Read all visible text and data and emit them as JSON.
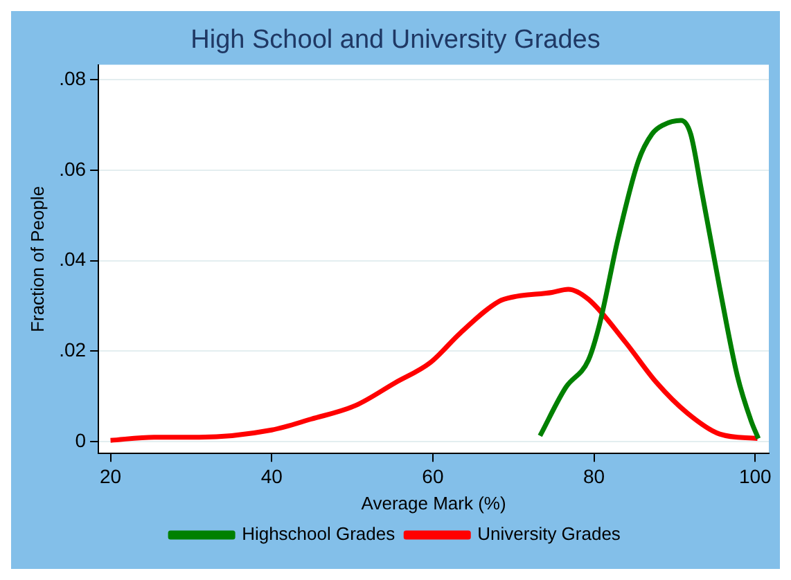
{
  "chart_data": {
    "type": "line",
    "title": "High School and University Grades",
    "xlabel": "Average Mark (%)",
    "ylabel": "Fraction of People",
    "series": [
      {
        "name": "Highschool Grades",
        "color": "#008000",
        "x": [
          73.3,
          76.5,
          79.3,
          80.7,
          83,
          85.5,
          87.2,
          88.6,
          90.8,
          92,
          93.3,
          95.6,
          97.8,
          99.5,
          100.4
        ],
        "values": [
          0.0013,
          0.012,
          0.018,
          0.026,
          0.045,
          0.062,
          0.068,
          0.07,
          0.071,
          0.068,
          0.056,
          0.034,
          0.0145,
          0.0046,
          0.0007
        ]
      },
      {
        "name": "University Grades",
        "color": "#ff0000",
        "x": [
          20,
          25.4,
          31,
          40,
          44.9,
          50.4,
          55.3,
          59.7,
          63.4,
          68.2,
          70,
          74.8,
          76.8,
          79.3,
          83.9,
          87.7,
          91.6,
          95.6,
          100.3
        ],
        "values": [
          0.0003,
          0.001,
          0.001,
          0.0026,
          0.005,
          0.008,
          0.013,
          0.0175,
          0.024,
          0.031,
          0.032,
          0.033,
          0.0337,
          0.0315,
          0.022,
          0.0132,
          0.0063,
          0.0017,
          0.0007
        ]
      }
    ],
    "xlim": [
      18.5,
      101.7
    ],
    "ylim": [
      -0.0026,
      0.0833
    ],
    "xticks": [
      20,
      40,
      60,
      80,
      100
    ],
    "yticks": [
      {
        "value": 0,
        "label": "0"
      },
      {
        "value": 0.02,
        "label": ".02"
      },
      {
        "value": 0.04,
        "label": ".04"
      },
      {
        "value": 0.06,
        "label": ".06"
      },
      {
        "value": 0.08,
        "label": ".08"
      }
    ],
    "grid": "y",
    "legend": "bottom",
    "marker": "none",
    "line_style": "solid"
  }
}
